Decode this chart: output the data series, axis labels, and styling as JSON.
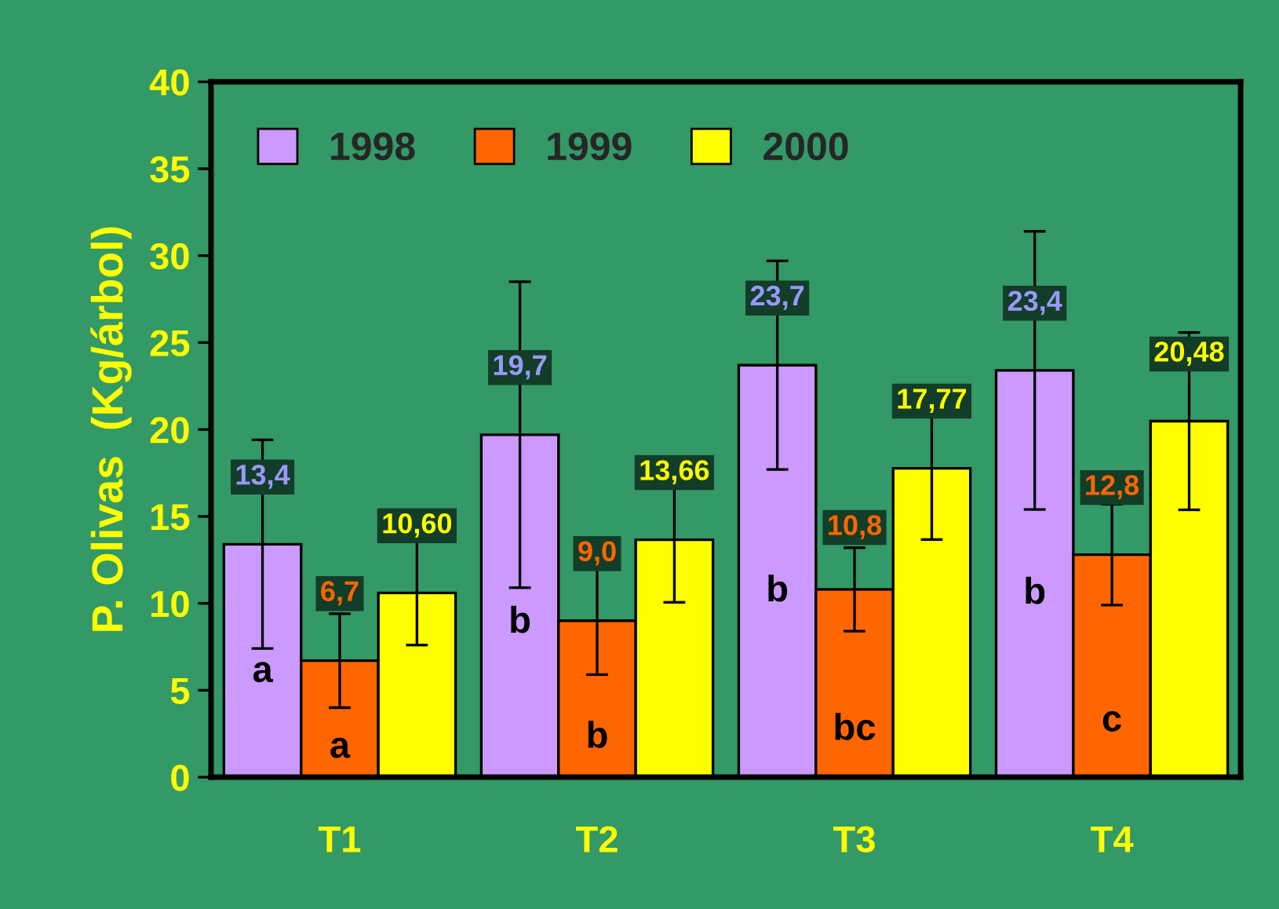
{
  "chart_data": {
    "type": "bar",
    "ylabel": "P. Olivas  (Kg/árbol)",
    "categories": [
      "T1",
      "T2",
      "T3",
      "T4"
    ],
    "series": [
      {
        "name": "1998",
        "color": "#cc99ff",
        "values": [
          13.4,
          19.7,
          23.7,
          23.4
        ],
        "errors": [
          6.0,
          8.8,
          6.0,
          8.0
        ],
        "value_labels": [
          "13,4",
          "19,7",
          "23,7",
          "23,4"
        ]
      },
      {
        "name": "1999",
        "color": "#ff6600",
        "values": [
          6.7,
          9.0,
          10.8,
          12.8
        ],
        "errors": [
          2.7,
          3.1,
          2.4,
          2.9
        ],
        "value_labels": [
          "6,7",
          "9,0",
          "10,8",
          "12,8"
        ]
      },
      {
        "name": "2000",
        "color": "#ffff00",
        "values": [
          10.6,
          13.66,
          17.77,
          20.48
        ],
        "errors": [
          3.0,
          3.6,
          4.1,
          5.1
        ],
        "value_labels": [
          "10,60",
          "13,66",
          "17,77",
          "20,48"
        ]
      }
    ],
    "annotations": [
      "a",
      "a",
      "b",
      "b",
      "b",
      "bc",
      "b",
      "c"
    ],
    "ylim": [
      0,
      40
    ],
    "yticks": [
      0,
      5,
      10,
      15,
      20,
      25,
      30,
      35,
      40
    ],
    "grid": false,
    "legend": "top left"
  }
}
